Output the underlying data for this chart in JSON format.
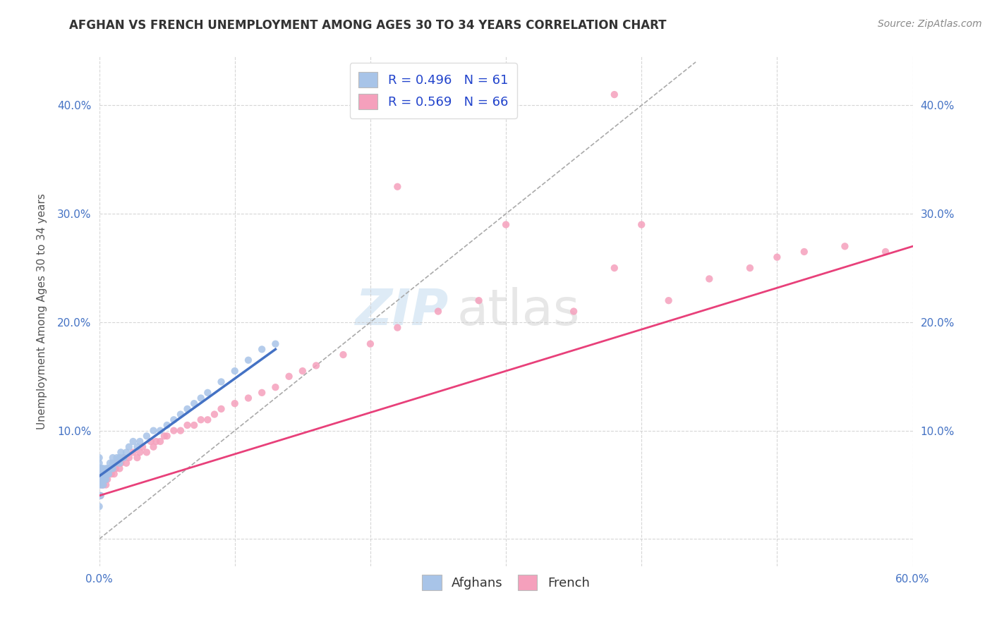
{
  "title": "AFGHAN VS FRENCH UNEMPLOYMENT AMONG AGES 30 TO 34 YEARS CORRELATION CHART",
  "source": "Source: ZipAtlas.com",
  "ylabel": "Unemployment Among Ages 30 to 34 years",
  "xlim": [
    0.0,
    0.6
  ],
  "ylim": [
    -0.025,
    0.445
  ],
  "xticks": [
    0.0,
    0.1,
    0.2,
    0.3,
    0.4,
    0.5,
    0.6
  ],
  "yticks": [
    0.0,
    0.1,
    0.2,
    0.3,
    0.4
  ],
  "xlabel_labels": [
    "0.0%",
    "",
    "",
    "",
    "",
    "",
    "60.0%"
  ],
  "ylabel_labels": [
    "",
    "10.0%",
    "20.0%",
    "30.0%",
    "40.0%"
  ],
  "right_ylabel_labels": [
    "",
    "10.0%",
    "20.0%",
    "30.0%",
    "40.0%"
  ],
  "afghan_color": "#a8c4e8",
  "french_color": "#f5a0bc",
  "afghan_line_color": "#4472c4",
  "french_line_color": "#e8407a",
  "legend_r_afghan": "R = 0.496",
  "legend_n_afghan": "N = 61",
  "legend_r_french": "R = 0.569",
  "legend_n_french": "N = 66",
  "watermark_zip": "ZIP",
  "watermark_atlas": "atlas",
  "background_color": "#ffffff",
  "grid_color": "#cccccc",
  "afghan_scatter_x": [
    0.0,
    0.0,
    0.0,
    0.0,
    0.0,
    0.0,
    0.0,
    0.0,
    0.001,
    0.001,
    0.001,
    0.001,
    0.001,
    0.002,
    0.002,
    0.002,
    0.002,
    0.003,
    0.003,
    0.003,
    0.004,
    0.004,
    0.005,
    0.005,
    0.005,
    0.006,
    0.006,
    0.007,
    0.007,
    0.008,
    0.008,
    0.009,
    0.01,
    0.01,
    0.01,
    0.012,
    0.013,
    0.015,
    0.015,
    0.016,
    0.018,
    0.02,
    0.022,
    0.025,
    0.028,
    0.03,
    0.035,
    0.04,
    0.045,
    0.05,
    0.055,
    0.06,
    0.065,
    0.07,
    0.075,
    0.08,
    0.09,
    0.1,
    0.11,
    0.12,
    0.13
  ],
  "afghan_scatter_y": [
    0.03,
    0.04,
    0.05,
    0.055,
    0.06,
    0.065,
    0.07,
    0.075,
    0.04,
    0.05,
    0.055,
    0.06,
    0.065,
    0.05,
    0.055,
    0.06,
    0.065,
    0.05,
    0.06,
    0.065,
    0.055,
    0.06,
    0.055,
    0.06,
    0.065,
    0.06,
    0.065,
    0.06,
    0.065,
    0.065,
    0.07,
    0.065,
    0.065,
    0.07,
    0.075,
    0.07,
    0.075,
    0.07,
    0.075,
    0.08,
    0.075,
    0.08,
    0.085,
    0.09,
    0.085,
    0.09,
    0.095,
    0.1,
    0.1,
    0.105,
    0.11,
    0.115,
    0.12,
    0.125,
    0.13,
    0.135,
    0.145,
    0.155,
    0.165,
    0.175,
    0.18
  ],
  "french_scatter_x": [
    0.0,
    0.0,
    0.001,
    0.001,
    0.002,
    0.002,
    0.003,
    0.003,
    0.004,
    0.005,
    0.005,
    0.006,
    0.007,
    0.008,
    0.009,
    0.01,
    0.011,
    0.012,
    0.013,
    0.015,
    0.016,
    0.018,
    0.02,
    0.022,
    0.025,
    0.028,
    0.03,
    0.032,
    0.035,
    0.038,
    0.04,
    0.042,
    0.045,
    0.048,
    0.05,
    0.055,
    0.06,
    0.065,
    0.07,
    0.075,
    0.08,
    0.085,
    0.09,
    0.1,
    0.11,
    0.12,
    0.13,
    0.14,
    0.15,
    0.16,
    0.18,
    0.2,
    0.22,
    0.25,
    0.28,
    0.3,
    0.35,
    0.38,
    0.4,
    0.42,
    0.45,
    0.48,
    0.5,
    0.52,
    0.55,
    0.58
  ],
  "french_scatter_y": [
    0.04,
    0.05,
    0.04,
    0.055,
    0.05,
    0.055,
    0.05,
    0.06,
    0.055,
    0.05,
    0.06,
    0.055,
    0.06,
    0.065,
    0.06,
    0.065,
    0.06,
    0.065,
    0.07,
    0.065,
    0.07,
    0.075,
    0.07,
    0.075,
    0.08,
    0.075,
    0.08,
    0.085,
    0.08,
    0.09,
    0.085,
    0.09,
    0.09,
    0.095,
    0.095,
    0.1,
    0.1,
    0.105,
    0.105,
    0.11,
    0.11,
    0.115,
    0.12,
    0.125,
    0.13,
    0.135,
    0.14,
    0.15,
    0.155,
    0.16,
    0.17,
    0.18,
    0.195,
    0.21,
    0.22,
    0.29,
    0.21,
    0.25,
    0.29,
    0.22,
    0.24,
    0.25,
    0.26,
    0.265,
    0.27,
    0.265
  ],
  "french_outlier_x": [
    0.38
  ],
  "french_outlier_y": [
    0.41
  ],
  "french_outlier2_x": [
    0.22
  ],
  "french_outlier2_y": [
    0.325
  ],
  "afghan_trend_x": [
    0.0,
    0.13
  ],
  "afghan_trend_y": [
    0.058,
    0.175
  ],
  "french_trend_x": [
    0.0,
    0.6
  ],
  "french_trend_y": [
    0.04,
    0.27
  ],
  "diag_line_x": [
    0.0,
    0.44
  ],
  "diag_line_y": [
    0.0,
    0.44
  ],
  "title_fontsize": 12,
  "label_fontsize": 11,
  "tick_fontsize": 11,
  "legend_fontsize": 13,
  "source_fontsize": 10,
  "marker_size": 55,
  "watermark_fontsize_zip": 52,
  "watermark_fontsize_atlas": 52,
  "watermark_color_zip": "#c8dff0",
  "watermark_color_atlas": "#d8d8d8",
  "watermark_alpha": 0.6
}
